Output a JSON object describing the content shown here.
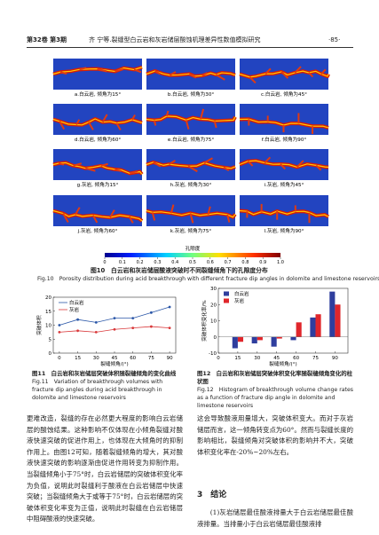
{
  "header": {
    "volume": "第32卷 第3期",
    "running_title": "齐 宁等.裂缝型白云岩和灰岩储层酸蚀机理差异性数值模拟研究",
    "page": "·85·"
  },
  "figure10": {
    "panels": [
      "a.白云岩, 倾角为15°",
      "b.白云岩, 倾角为30°",
      "c.白云岩, 倾角为45°",
      "d.白云岩, 倾角为60°",
      "e.白云岩, 倾角为75°",
      "f.白云岩, 倾角为90°",
      "g.灰岩, 倾角为15°",
      "h.灰岩, 倾角为30°",
      "i.灰岩, 倾角为45°",
      "j.灰岩, 倾角为60°",
      "k.灰岩, 倾角为75°",
      "l.灰岩, 倾角为90°"
    ],
    "colorbar": {
      "label": "孔隙度",
      "lim": [
        0,
        1
      ],
      "ticks": [
        0,
        0.1,
        0.2,
        0.3,
        0.4,
        0.5,
        0.6,
        0.7,
        0.8,
        0.9,
        {
          "value": 1,
          "label": "1.0"
        }
      ]
    },
    "caption_cn": "图10　白云岩和灰岩储层酸液突破时不同裂缝倾角下的孔隙度分布",
    "caption_en": "Fig.10　Porosity distribution during acid breakthrough with different fracture dip angles in dolomite and limestone reservoirs"
  },
  "figure11": {
    "type": "line",
    "ylabel": "突破体积",
    "xlabel": "裂缝倾角/(°)",
    "x": [
      0,
      15,
      30,
      45,
      60,
      75,
      90
    ],
    "xlim": [
      -5,
      95
    ],
    "xticks": [
      0,
      15,
      30,
      45,
      60,
      75,
      90
    ],
    "ylim": [
      0,
      20
    ],
    "yticks": [
      0,
      5,
      10,
      15,
      20
    ],
    "series": [
      {
        "name": "白云岩",
        "color": "#2b57a8",
        "values": [
          10,
          12,
          11,
          12.5,
          12.5,
          14.5,
          16.5
        ]
      },
      {
        "name": "灰岩",
        "color": "#d9383a",
        "values": [
          7.5,
          8,
          7.5,
          8.5,
          9,
          9.5,
          9
        ]
      }
    ],
    "caption_cn": "图11　白云岩和灰岩储层突破体积随裂缝倾角的变化曲线",
    "caption_en": "Fig.11　Variation of breakthrough volumes with fracture dip angles during acid breakthrough in dolomite and limestone reservoirs"
  },
  "figure12": {
    "type": "bar",
    "ylabel": "突破体积变化率/%",
    "xlabel": "裂缝倾角/(°)",
    "x": [
      15,
      30,
      45,
      60,
      75,
      90
    ],
    "xlim": [
      0,
      100
    ],
    "xticks": [
      0,
      15,
      30,
      45,
      60,
      75,
      90
    ],
    "ylim": [
      -10,
      30
    ],
    "yticks": [
      -10,
      0,
      10,
      20,
      30
    ],
    "series": [
      {
        "name": "白云岩",
        "color": "#2f3e9e",
        "values": [
          -7,
          -4,
          -6,
          -2,
          12,
          28
        ]
      },
      {
        "name": "灰岩",
        "color": "#e0262b",
        "values": [
          -3,
          -2,
          -1,
          9,
          14,
          20
        ]
      }
    ],
    "caption_cn": "图12　白云岩和灰岩储层突破体积变化率随裂缝倾角变化的柱状图",
    "caption_en": "Fig.12　Histogram of breakthrough volume change rates as a function of fracture dip angle in dolomite and limestone reservoirs"
  },
  "body": {
    "left": "更难改造，裂缝的存在必然更大程度的影响白云岩储层的酸蚀结果。这种影响不仅体现在小倾角裂缝对酸液快速突破的促进作用上，也体现在大倾角时的抑制作用上。由图12可知，随着裂缝倾角的增大，其对酸液快速突破的影响逐渐由促进作用转变为抑制作用。当裂缝倾角小于75°时，白云岩储层的突破体积变化率为负值，说明此时裂缝利于酸液在白云岩储层中快速突破；当裂缝倾角大于或等于75°时，白云岩储层的突破体积变化率变为正值，说明此时裂缝在白云岩储层中阻碍酸液的快速突破。",
    "right": "这会导致酸液用量增大，突破体积变大。而对于灰岩储层而言，这一倾角转变点为60°。然而与裂缝长度的影响相比，裂缝倾角对突破体积的影响并不大，突破体积变化率在-20%~20%左右。",
    "section": "3　结论",
    "conclusion": "(1)灰岩储层最佳酸液排量大于白云岩储层最佳酸液排量。当排量小于白云岩储层最佳酸液排"
  }
}
